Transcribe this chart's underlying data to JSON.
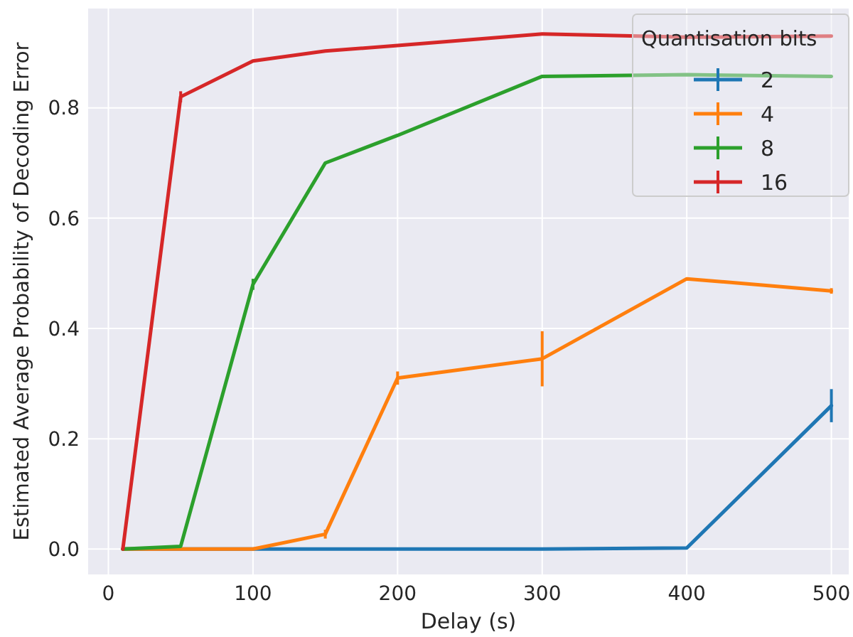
{
  "chart_data": {
    "type": "line",
    "xlabel": "Delay (s)",
    "ylabel": "Estimated Average Probability of Decoding Error",
    "legend_title": "Quantisation bits",
    "legend": "top right",
    "grid": true,
    "x": [
      10,
      50,
      100,
      150,
      200,
      300,
      400,
      500
    ],
    "xlim": [
      -14,
      512
    ],
    "xticks": [
      0,
      100,
      200,
      300,
      400,
      500
    ],
    "ylim": [
      -0.046,
      0.98
    ],
    "yticks": [
      {
        "value": 0,
        "label": "0.0"
      },
      {
        "value": 0.2,
        "label": "0.2"
      },
      {
        "value": 0.4,
        "label": "0.4"
      },
      {
        "value": 0.6,
        "label": "0.6"
      },
      {
        "value": 0.8,
        "label": "0.8"
      }
    ],
    "series": [
      {
        "name": "2",
        "color": "#1f77b4",
        "values": [
          0,
          0,
          0,
          0,
          0,
          0,
          0.002,
          0.26
        ],
        "errors": [
          null,
          null,
          null,
          null,
          null,
          null,
          null,
          0.03
        ]
      },
      {
        "name": "4",
        "color": "#ff7f0e",
        "values": [
          0,
          0,
          0,
          0.027,
          0.31,
          0.345,
          0.49,
          0.468
        ],
        "errors": [
          null,
          null,
          null,
          0.008,
          0.012,
          0.05,
          null,
          0.005
        ]
      },
      {
        "name": "8",
        "color": "#2ca02c",
        "values": [
          0,
          0.005,
          0.48,
          0.7,
          0.75,
          0.857,
          0.86,
          0.857
        ],
        "errors": [
          null,
          null,
          0.01,
          null,
          null,
          null,
          null,
          null
        ]
      },
      {
        "name": "16",
        "color": "#d62728",
        "values": [
          0,
          0.82,
          0.885,
          0.903,
          0.913,
          0.934,
          0.928,
          0.93
        ],
        "errors": [
          null,
          0.01,
          null,
          null,
          null,
          null,
          null,
          null
        ]
      }
    ]
  }
}
